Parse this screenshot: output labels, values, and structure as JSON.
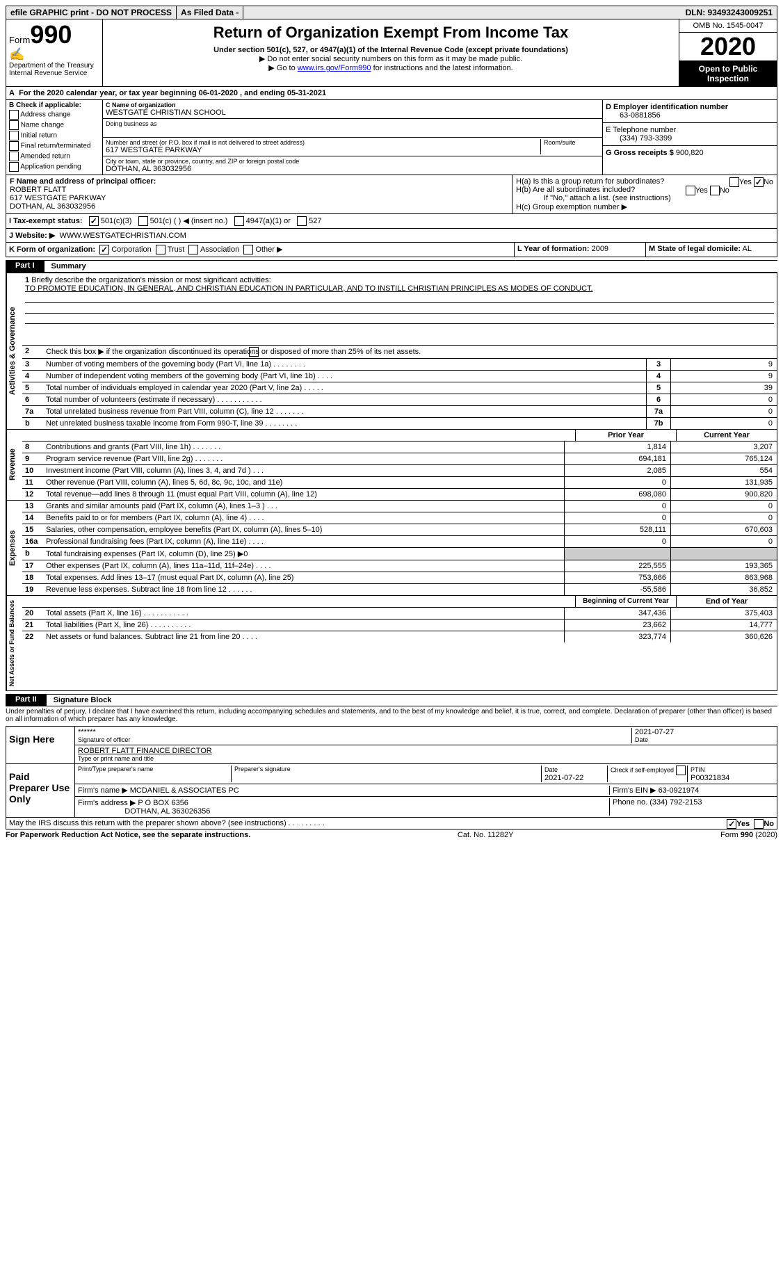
{
  "top": {
    "efile": "efile GRAPHIC print - DO NOT PROCESS",
    "asfiled": "As Filed Data -",
    "dln": "DLN: 93493243009251"
  },
  "header": {
    "form_label": "Form",
    "form_no": "990",
    "dept": "Department of the Treasury\nInternal Revenue Service",
    "title": "Return of Organization Exempt From Income Tax",
    "sub1": "Under section 501(c), 527, or 4947(a)(1) of the Internal Revenue Code (except private foundations)",
    "sub2": "▶ Do not enter social security numbers on this form as it may be made public.",
    "sub3_pre": "▶ Go to ",
    "sub3_link": "www.irs.gov/Form990",
    "sub3_post": " for instructions and the latest information.",
    "omb": "OMB No. 1545-0047",
    "year": "2020",
    "open": "Open to Public Inspection"
  },
  "A": "For the 2020 calendar year, or tax year beginning 06-01-2020  , and ending 05-31-2021",
  "B": {
    "title": "B Check if applicable:",
    "c1": "Address change",
    "c2": "Name change",
    "c3": "Initial return",
    "c4": "Final return/terminated",
    "c5": "Amended return",
    "c6": "Application pending"
  },
  "C": {
    "label": "C Name of organization",
    "name": "WESTGATE CHRISTIAN SCHOOL",
    "dba_label": "Doing business as",
    "addr_label": "Number and street (or P.O. box if mail is not delivered to street address)",
    "room_label": "Room/suite",
    "addr": "617 WESTGATE PARKWAY",
    "city_label": "City or town, state or province, country, and ZIP or foreign postal code",
    "city": "DOTHAN, AL  363032956"
  },
  "D": {
    "label": "D Employer identification number",
    "val": "63-0881856"
  },
  "E": {
    "label": "E Telephone number",
    "val": "(334) 793-3399"
  },
  "G": {
    "label": "G Gross receipts $",
    "val": "900,820"
  },
  "F": {
    "label": "F  Name and address of principal officer:",
    "name": "ROBERT FLATT",
    "addr1": "617 WESTGATE PARKWAY",
    "addr2": "DOTHAN, AL  363032956"
  },
  "H": {
    "a": "H(a)  Is this a group return for subordinates?",
    "b": "H(b)  Are all subordinates included?",
    "bnote": "If \"No,\" attach a list. (see instructions)",
    "c": "H(c)  Group exemption number ▶",
    "yes": "Yes",
    "no": "No"
  },
  "I": {
    "label": "I  Tax-exempt status:",
    "o1": "501(c)(3)",
    "o2": "501(c) (  ) ◀ (insert no.)",
    "o3": "4947(a)(1) or",
    "o4": "527"
  },
  "J": {
    "label": "J  Website: ▶",
    "val": "WWW.WESTGATECHRISTIAN.COM"
  },
  "K": {
    "label": "K Form of organization:",
    "o1": "Corporation",
    "o2": "Trust",
    "o3": "Association",
    "o4": "Other ▶"
  },
  "L": {
    "label": "L Year of formation:",
    "val": "2009"
  },
  "M": {
    "label": "M State of legal domicile:",
    "val": "AL"
  },
  "part1": {
    "label": "Part I",
    "title": "Summary"
  },
  "vtabs": {
    "ag": "Activities & Governance",
    "rev": "Revenue",
    "exp": "Expenses",
    "na": "Net Assets or Fund Balances"
  },
  "s1": {
    "label": "1",
    "text": "Briefly describe the organization's mission or most significant activities:",
    "mission": "TO PROMOTE EDUCATION, IN GENERAL, AND CHRISTIAN EDUCATION IN PARTICULAR, AND TO INSTILL CHRISTIAN PRINCIPLES AS MODES OF CONDUCT."
  },
  "s2": "Check this box ▶        if the organization discontinued its operations or disposed of more than 25% of its net assets.",
  "lines_small": [
    {
      "n": "3",
      "d": "Number of voting members of the governing body (Part VI, line 1a)  .   .   .   .   .   .   .   .",
      "l": "3",
      "v": "9"
    },
    {
      "n": "4",
      "d": "Number of independent voting members of the governing body (Part VI, line 1b)  .   .   .   .",
      "l": "4",
      "v": "9"
    },
    {
      "n": "5",
      "d": "Total number of individuals employed in calendar year 2020 (Part V, line 2a)  .   .   .   .   .",
      "l": "5",
      "v": "39"
    },
    {
      "n": "6",
      "d": "Total number of volunteers (estimate if necessary)  .   .   .   .   .   .   .   .   .   .   .",
      "l": "6",
      "v": "0"
    },
    {
      "n": "7a",
      "d": "Total unrelated business revenue from Part VIII, column (C), line 12  .   .   .   .   .   .   .",
      "l": "7a",
      "v": "0"
    },
    {
      "n": "b",
      "d": "Net unrelated business taxable income from Form 990-T, line 39  .   .   .   .   .   .   .   .",
      "l": "7b",
      "v": "0"
    }
  ],
  "col_headers": {
    "py": "Prior Year",
    "cy": "Current Year",
    "boy": "Beginning of Current Year",
    "eoy": "End of Year"
  },
  "rev_lines": [
    {
      "n": "8",
      "d": "Contributions and grants (Part VIII, line 1h)  .   .   .   .   .   .   .",
      "p": "1,814",
      "c": "3,207"
    },
    {
      "n": "9",
      "d": "Program service revenue (Part VIII, line 2g)  .   .   .   .   .   .   .",
      "p": "694,181",
      "c": "765,124"
    },
    {
      "n": "10",
      "d": "Investment income (Part VIII, column (A), lines 3, 4, and 7d )  .   .   .",
      "p": "2,085",
      "c": "554"
    },
    {
      "n": "11",
      "d": "Other revenue (Part VIII, column (A), lines 5, 6d, 8c, 9c, 10c, and 11e)",
      "p": "0",
      "c": "131,935"
    },
    {
      "n": "12",
      "d": "Total revenue—add lines 8 through 11 (must equal Part VIII, column (A), line 12)",
      "p": "698,080",
      "c": "900,820"
    }
  ],
  "exp_lines": [
    {
      "n": "13",
      "d": "Grants and similar amounts paid (Part IX, column (A), lines 1–3 )  .   .   .",
      "p": "0",
      "c": "0"
    },
    {
      "n": "14",
      "d": "Benefits paid to or for members (Part IX, column (A), line 4)  .   .   .   .",
      "p": "0",
      "c": "0"
    },
    {
      "n": "15",
      "d": "Salaries, other compensation, employee benefits (Part IX, column (A), lines 5–10)",
      "p": "528,111",
      "c": "670,603"
    },
    {
      "n": "16a",
      "d": "Professional fundraising fees (Part IX, column (A), line 11e)  .   .   .   .",
      "p": "0",
      "c": "0"
    },
    {
      "n": "b",
      "d": "Total fundraising expenses (Part IX, column (D), line 25) ▶0",
      "p": "",
      "c": "",
      "grey": true
    },
    {
      "n": "17",
      "d": "Other expenses (Part IX, column (A), lines 11a–11d, 11f–24e)  .   .   .   .",
      "p": "225,555",
      "c": "193,365"
    },
    {
      "n": "18",
      "d": "Total expenses. Add lines 13–17 (must equal Part IX, column (A), line 25)",
      "p": "753,666",
      "c": "863,968"
    },
    {
      "n": "19",
      "d": "Revenue less expenses. Subtract line 18 from line 12  .   .   .   .   .   .",
      "p": "-55,586",
      "c": "36,852"
    }
  ],
  "na_lines": [
    {
      "n": "20",
      "d": "Total assets (Part X, line 16)  .   .   .   .   .   .   .   .   .   .   .",
      "p": "347,436",
      "c": "375,403"
    },
    {
      "n": "21",
      "d": "Total liabilities (Part X, line 26)  .   .   .   .   .   .   .   .   .   .",
      "p": "23,662",
      "c": "14,777"
    },
    {
      "n": "22",
      "d": "Net assets or fund balances. Subtract line 21 from line 20  .   .   .   .",
      "p": "323,774",
      "c": "360,626"
    }
  ],
  "part2": {
    "label": "Part II",
    "title": "Signature Block"
  },
  "penalty": "Under penalties of perjury, I declare that I have examined this return, including accompanying schedules and statements, and to the best of my knowledge and belief, it is true, correct, and complete. Declaration of preparer (other than officer) is based on all information of which preparer has any knowledge.",
  "sign": {
    "here": "Sign Here",
    "stars": "******",
    "sig_officer": "Signature of officer",
    "date": "2021-07-27",
    "date_label": "Date",
    "name": "ROBERT FLATT FINANCE DIRECTOR",
    "name_label": "Type or print name and title"
  },
  "prep": {
    "label": "Paid Preparer Use Only",
    "h1": "Print/Type preparer's name",
    "h2": "Preparer's signature",
    "h3": "Date",
    "h3v": "2021-07-22",
    "h4": "Check        if self-employed",
    "h5": "PTIN",
    "h5v": "P00321834",
    "firm_label": "Firm's name     ▶",
    "firm": "MCDANIEL & ASSOCIATES PC",
    "ein_label": "Firm's EIN ▶",
    "ein": "63-0921974",
    "addr_label": "Firm's address ▶",
    "addr": "P O BOX 6356",
    "addr2": "DOTHAN, AL  363026356",
    "phone_label": "Phone no.",
    "phone": "(334) 792-2153"
  },
  "irs_discuss": "May the IRS discuss this return with the preparer shown above? (see instructions)  .   .   .   .   .   .   .   .   .",
  "foot": {
    "l": "For Paperwork Reduction Act Notice, see the separate instructions.",
    "c": "Cat. No. 11282Y",
    "r": "Form 990 (2020)"
  }
}
